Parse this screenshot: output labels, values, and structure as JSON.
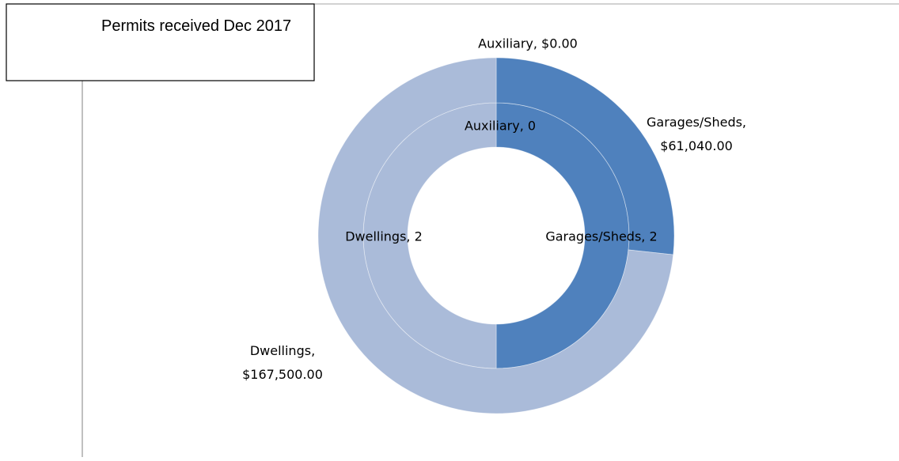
{
  "chart_data": {
    "type": "donut",
    "title": "Permits received Dec 2017",
    "categories": [
      "Auxiliary",
      "Garages/Sheds",
      "Dwellings"
    ],
    "series": [
      {
        "colors": [
          "#7f9fcf",
          "#4f81bd",
          "#aabbd9"
        ],
        "values": [
          0,
          2,
          2
        ],
        "value_labels": [
          "Auxiliary, 0",
          "Garages/Sheds, 2",
          "Dwellings, 2"
        ]
      },
      {
        "colors": [
          "#7f9fcf",
          "#4f81bd",
          "#aabbd9"
        ],
        "values": [
          0,
          61040,
          167500
        ],
        "value_labels": [
          "Auxiliary, $0.00",
          "Garages/Sheds, $61,040.00",
          "Dwellings, $167,500.00"
        ]
      }
    ]
  }
}
